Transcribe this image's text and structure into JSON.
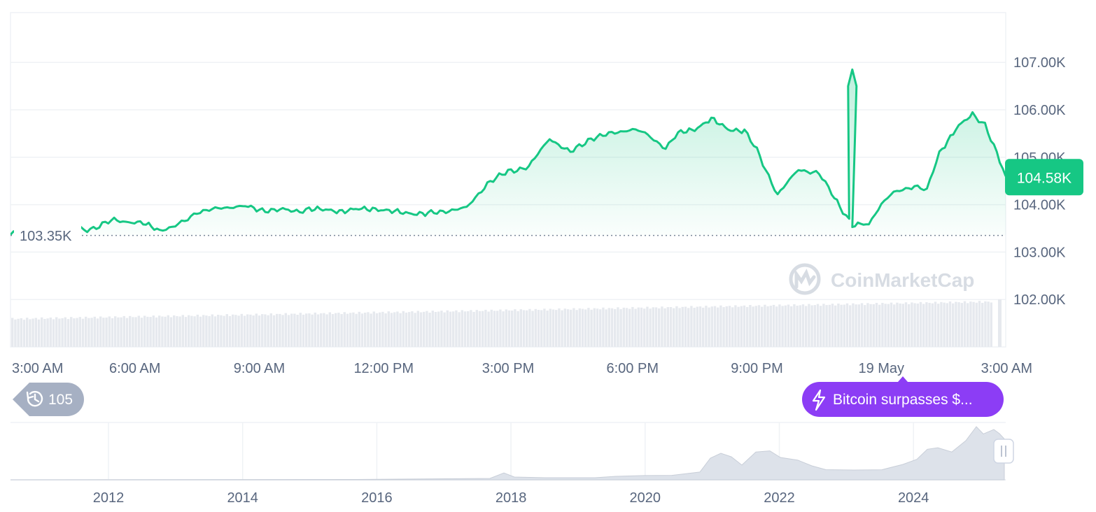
{
  "chart_data": [
    {
      "type": "area",
      "y_axis": {
        "ticks": [
          102000,
          103000,
          104000,
          105000,
          106000,
          107000
        ],
        "tick_labels": [
          "102.00K",
          "103.00K",
          "104.00K",
          "105.00K",
          "106.00K",
          "107.00K"
        ],
        "range": [
          101000,
          108050
        ],
        "position": "right"
      },
      "x_axis": {
        "tick_labels": [
          "3:00 AM",
          "6:00 AM",
          "9:00 AM",
          "12:00 PM",
          "3:00 PM",
          "6:00 PM",
          "9:00 PM",
          "19 May",
          "3:00 AM"
        ],
        "range_hours": [
          -3,
          21
        ]
      },
      "start_price": {
        "value": 103350,
        "label": "103.35K"
      },
      "current_price": {
        "value": 104580,
        "label": "104.58K"
      },
      "series": [
        {
          "x_hours": [
            -3,
            -2.7,
            -2.2,
            -1.6,
            -1,
            -0.5,
            0.2,
            0.6,
            0.9,
            1.2,
            1.5,
            2.3,
            2.6,
            3,
            3.5,
            3.9,
            4.2,
            4.6,
            5,
            5.4,
            5.8,
            6.2,
            6.6,
            7,
            7.5,
            8,
            8.5,
            9,
            9.5,
            10,
            10.5,
            11,
            11.5,
            12,
            12.3,
            12.8,
            13.1,
            13.5,
            13.9,
            14.3,
            14.7,
            15,
            15.5,
            16,
            16.5,
            16.8,
            17,
            17.3,
            17.7,
            18,
            18.3,
            18.8,
            19.1,
            19.4,
            19.8,
            20.2,
            20.5,
            21
          ],
          "values": [
            103380,
            103450,
            103430,
            103450,
            103500,
            103680,
            103600,
            103470,
            103520,
            103650,
            103850,
            103950,
            103980,
            103880,
            103900,
            103850,
            103920,
            103880,
            103870,
            103900,
            103920,
            103850,
            103830,
            103800,
            103870,
            103930,
            104450,
            104700,
            104800,
            105400,
            105100,
            105400,
            105500,
            105600,
            105500,
            105200,
            105500,
            105600,
            105800,
            105600,
            105550,
            105150,
            104200,
            104750,
            104650,
            104250,
            103980,
            103550,
            103600,
            104020,
            104250,
            104400,
            104300,
            105100,
            105600,
            105900,
            105700,
            104600
          ],
          "intraday_high": {
            "x_hours": 17.3,
            "value": 106850
          },
          "color": "#16c784"
        }
      ]
    },
    {
      "type": "area",
      "x_axis": {
        "tick_labels": [
          "2012",
          "2014",
          "2016",
          "2018",
          "2020",
          "2022",
          "2024"
        ]
      }
    }
  ],
  "watermark": "CoinMarketCap",
  "history_badge": {
    "icon": "history-icon",
    "count": "105"
  },
  "event_pill": {
    "icon": "lightning-icon",
    "text": "Bitcoin surpasses $..."
  },
  "colors": {
    "up": "#16c784",
    "accent_purple": "#8c3df5",
    "muted_badge": "#a6b0c3"
  }
}
